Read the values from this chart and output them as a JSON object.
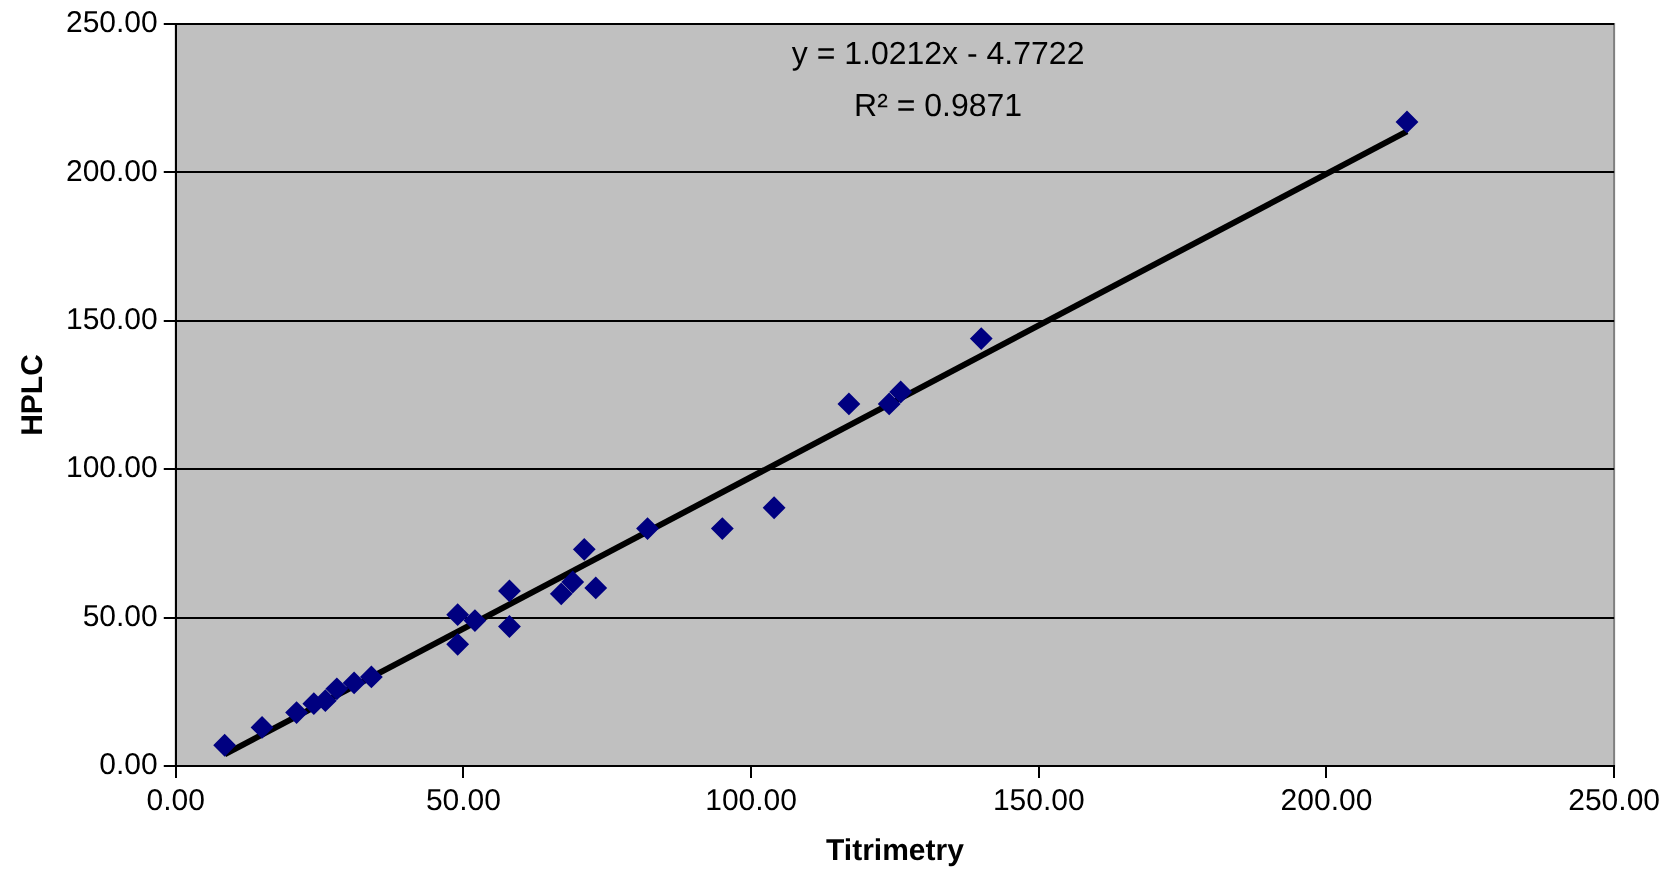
{
  "chart_data": {
    "type": "scatter",
    "xlabel": "Titrimetry",
    "ylabel": "HPLC",
    "x": [
      8.5,
      15,
      21,
      24,
      26,
      28,
      31,
      34,
      49,
      49,
      52,
      58,
      58,
      67,
      69,
      71,
      73,
      82,
      95,
      104,
      117,
      124,
      126,
      140,
      214
    ],
    "series": [
      {
        "color": "#000080",
        "values": [
          7,
          13,
          18,
          21,
          22,
          26,
          28,
          30,
          41,
          51,
          49,
          47,
          59,
          58,
          62,
          73,
          60,
          80,
          80,
          87,
          122,
          122,
          126,
          144,
          217
        ]
      },
      {
        "type": "line",
        "color": "#000000",
        "marker": "none",
        "x": [
          8.5,
          214
        ],
        "values": [
          3.9,
          213.8
        ]
      }
    ],
    "annotations": [
      "y = 1.0212x - 4.7722",
      "R² = 0.9871"
    ],
    "xlim": [
      0,
      250
    ],
    "ylim": [
      0,
      250
    ],
    "xticks": [
      {
        "value": 0,
        "label": "0.00"
      },
      {
        "value": 50,
        "label": "50.00"
      },
      {
        "value": 100,
        "label": "100.00"
      },
      {
        "value": 150,
        "label": "150.00"
      },
      {
        "value": 200,
        "label": "200.00"
      },
      {
        "value": 250,
        "label": "250.00"
      }
    ],
    "yticks": [
      {
        "value": 0,
        "label": "0.00"
      },
      {
        "value": 50,
        "label": "50.00"
      },
      {
        "value": 100,
        "label": "100.00"
      },
      {
        "value": 150,
        "label": "150.00"
      },
      {
        "value": 200,
        "label": "200.00"
      },
      {
        "value": 250,
        "label": "250.00"
      }
    ],
    "grid": "y",
    "legend": false,
    "marker": "diamond",
    "line_style": "solid"
  }
}
